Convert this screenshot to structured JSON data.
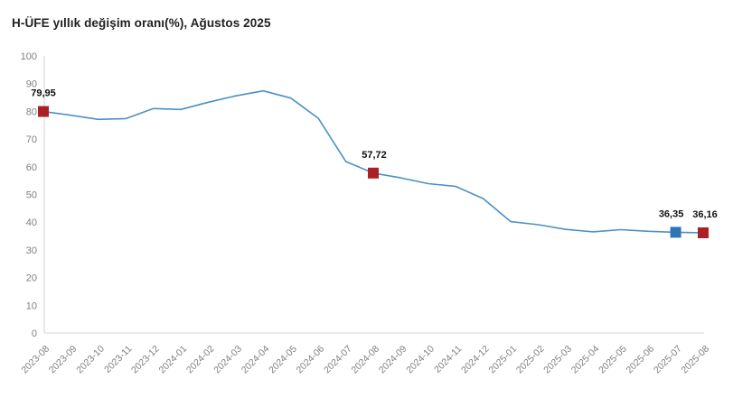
{
  "title": "H-ÜFE yıllık değişim oranı(%), Ağustos 2025",
  "chart_data": {
    "type": "line",
    "title": "H-ÜFE yıllık değişim oranı(%), Ağustos 2025",
    "xlabel": "",
    "ylabel": "",
    "ylim": [
      0,
      100
    ],
    "yticks": [
      0,
      10,
      20,
      30,
      40,
      50,
      60,
      70,
      80,
      90,
      100
    ],
    "grid": false,
    "legend_position": "none",
    "categories": [
      "2023-08",
      "2023-09",
      "2023-10",
      "2023-11",
      "2023-12",
      "2024-01",
      "2024-02",
      "2024-03",
      "2024-04",
      "2024-05",
      "2024-06",
      "2024-07",
      "2024-08",
      "2024-09",
      "2024-10",
      "2024-11",
      "2024-12",
      "2025-01",
      "2025-02",
      "2025-03",
      "2025-04",
      "2025-05",
      "2025-06",
      "2025-07",
      "2025-08"
    ],
    "values": [
      79.95,
      78.6,
      77.1,
      77.4,
      81.0,
      80.7,
      83.3,
      85.6,
      87.4,
      84.8,
      77.5,
      61.9,
      57.72,
      56.0,
      53.9,
      52.9,
      48.5,
      40.2,
      39.1,
      37.4,
      36.5,
      37.3,
      36.7,
      36.35,
      36.16
    ],
    "annotated_points": [
      {
        "category": "2023-08",
        "value": 79.95,
        "label": "79,95",
        "marker_color": "#ab2025",
        "label_dx": 0
      },
      {
        "category": "2024-08",
        "value": 57.72,
        "label": "57,72",
        "marker_color": "#ab2025",
        "label_dx": 1
      },
      {
        "category": "2025-07",
        "value": 36.35,
        "label": "36,35",
        "marker_color": "#2e75b6",
        "label_dx": -5
      },
      {
        "category": "2025-08",
        "value": 36.16,
        "label": "36,16",
        "marker_color": "#ab2025",
        "label_dx": 2
      }
    ],
    "colors": {
      "line": "#4c90c5",
      "marker_red": "#ab2025",
      "marker_blue": "#2e75b6",
      "axis_line": "#dcdcdc",
      "tick_label": "#7f7f7f",
      "data_label": "#111111",
      "title": "#212121",
      "background": "#ffffff"
    }
  }
}
